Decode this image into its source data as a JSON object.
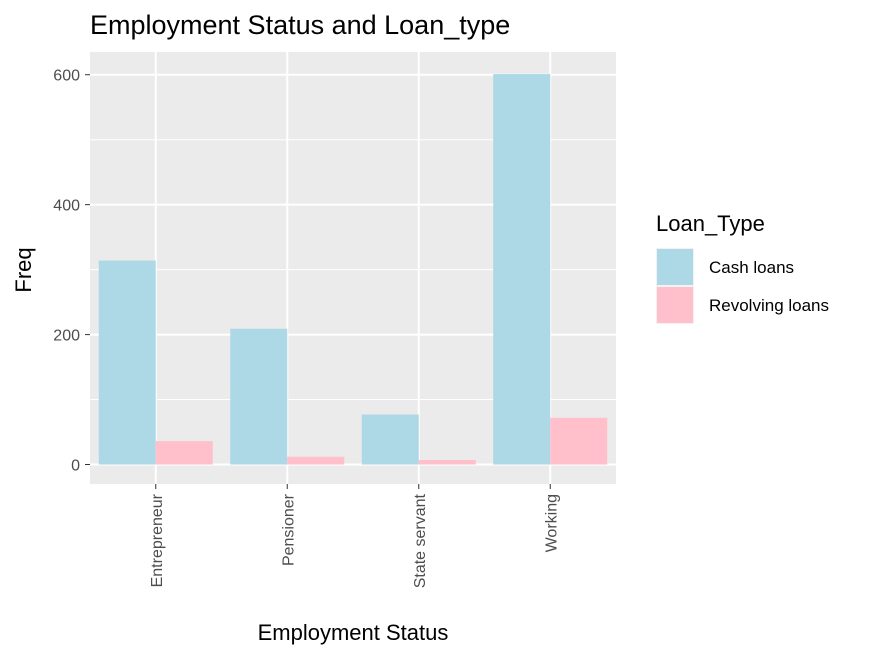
{
  "chart_data": {
    "type": "bar",
    "title": "Employment Status and Loan_type",
    "xlabel": "Employment Status",
    "ylabel": "Freq",
    "categories": [
      "Entrepreneur",
      "Pensioner",
      "State servant",
      "Working"
    ],
    "series": [
      {
        "name": "Cash loans",
        "values": [
          314,
          209,
          77,
          601
        ],
        "color": "#add8e6"
      },
      {
        "name": "Revolving loans",
        "values": [
          36,
          12,
          7,
          72
        ],
        "color": "#ffc0cb"
      }
    ],
    "ylim": [
      -30,
      635
    ],
    "yticks": [
      0,
      200,
      400,
      600
    ],
    "legend": {
      "title": "Loan_Type",
      "position": "right"
    },
    "grid": true,
    "panel_color": "#ebebeb"
  }
}
